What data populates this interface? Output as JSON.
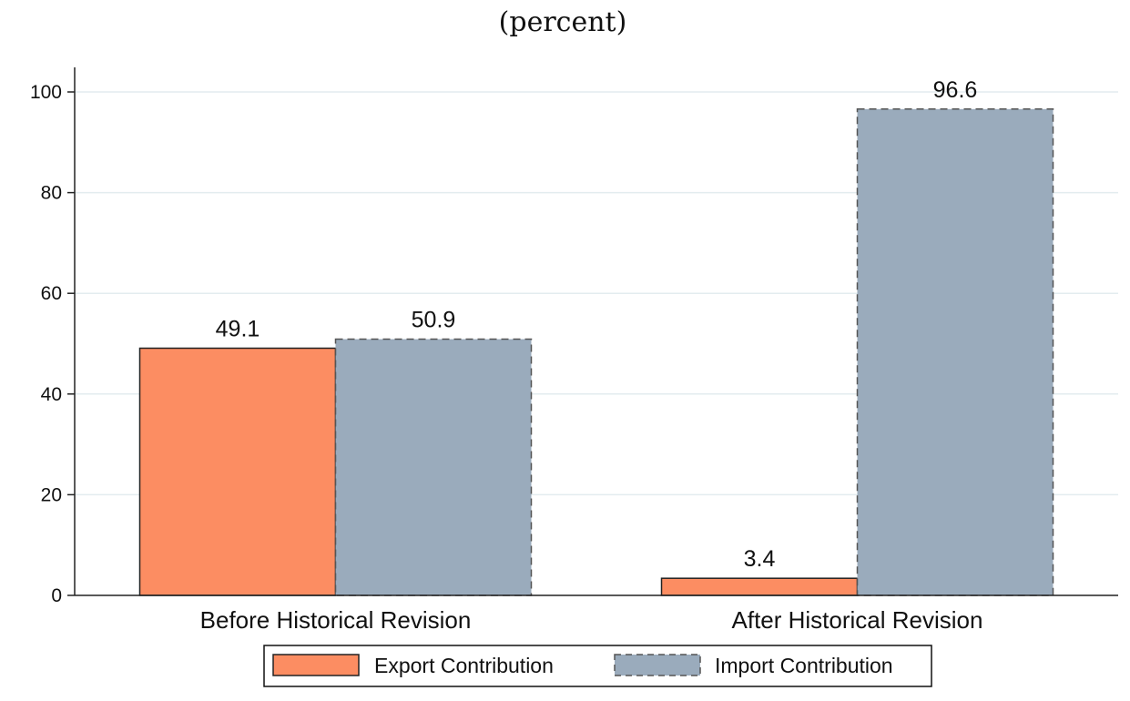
{
  "chart_data": {
    "type": "bar",
    "title": "(percent)",
    "categories": [
      "Before Historical Revision",
      "After Historical Revision"
    ],
    "series": [
      {
        "name": "Export Contribution",
        "values": [
          49.1,
          3.4
        ],
        "color": "#fc8d62",
        "border": "solid"
      },
      {
        "name": "Import Contribution",
        "values": [
          50.9,
          96.6
        ],
        "color": "#9aabbc",
        "border": "dashed"
      }
    ],
    "data_labels": [
      [
        "49.1",
        "3.4"
      ],
      [
        "50.9",
        "96.6"
      ]
    ],
    "yticks": [
      "0",
      "20",
      "40",
      "60",
      "80",
      "100"
    ],
    "ylim": [
      0,
      100
    ],
    "grid": true,
    "legend": "bottom"
  }
}
